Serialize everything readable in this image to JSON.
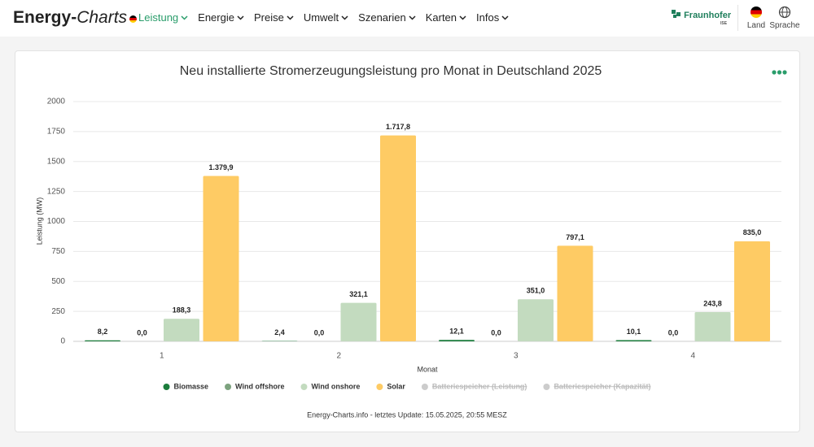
{
  "header": {
    "logo_bold": "Energy-",
    "logo_italic": "Charts",
    "menu": [
      "Leistung",
      "Energie",
      "Preise",
      "Umwelt",
      "Szenarien",
      "Karten",
      "Infos"
    ],
    "brand": "Fraunhofer",
    "brand_sub": "ISE",
    "land": "Land",
    "sprache": "Sprache"
  },
  "chart_data": {
    "type": "bar",
    "title": "Neu installierte Stromerzeugungsleistung pro Monat in Deutschland 2025",
    "x_label": "Monat",
    "y_label": "Leistung (MW)",
    "categories": [
      "1",
      "2",
      "3",
      "4"
    ],
    "series": [
      {
        "name": "Biomasse",
        "color": "#1b7d3c",
        "values": [
          8.2,
          2.4,
          12.1,
          10.1
        ],
        "value_labels": [
          "8,2",
          "2,4",
          "12,1",
          "10,1"
        ]
      },
      {
        "name": "Wind offshore",
        "color": "#7da37f",
        "values": [
          0,
          0,
          0,
          0
        ],
        "value_labels": [
          "0,0",
          "0,0",
          "0,0",
          "0,0"
        ]
      },
      {
        "name": "Wind onshore",
        "color": "#c3dbbf",
        "values": [
          188.3,
          321.1,
          351.0,
          243.8
        ],
        "value_labels": [
          "188,3",
          "321,1",
          "351,0",
          "243,8"
        ]
      },
      {
        "name": "Solar",
        "color": "#fecb64",
        "values": [
          1379.9,
          1717.8,
          797.1,
          835.0
        ],
        "value_labels": [
          "1.379,9",
          "1.717,8",
          "797,1",
          "835,0"
        ]
      }
    ],
    "hidden_legend": [
      "Batteriespeicher (Leistung)",
      "Batteriespeicher (Kapazität)"
    ],
    "ylim": [
      0,
      2000
    ],
    "yticks": [
      0,
      250,
      500,
      750,
      1000,
      1250,
      1500,
      1750,
      2000
    ],
    "grid": true,
    "footer": "Energy-Charts.info - letztes Update: 15.05.2025, 20:55 MESZ"
  }
}
